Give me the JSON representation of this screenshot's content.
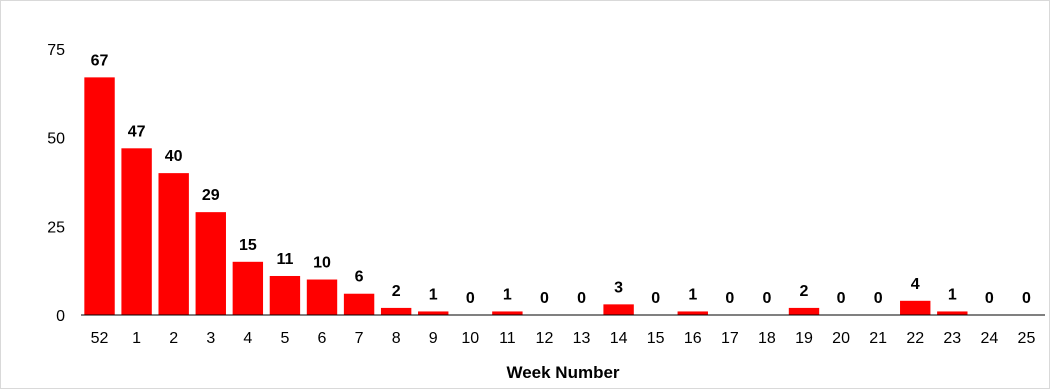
{
  "chart_data": {
    "type": "bar",
    "categories": [
      "52",
      "1",
      "2",
      "3",
      "4",
      "5",
      "6",
      "7",
      "8",
      "9",
      "10",
      "11",
      "12",
      "13",
      "14",
      "15",
      "16",
      "17",
      "18",
      "19",
      "20",
      "21",
      "22",
      "23",
      "24",
      "25"
    ],
    "values": [
      67,
      47,
      40,
      29,
      15,
      11,
      10,
      6,
      2,
      1,
      0,
      1,
      0,
      0,
      3,
      0,
      1,
      0,
      0,
      2,
      0,
      0,
      4,
      1,
      0,
      0
    ],
    "title": "",
    "xlabel": "Week Number",
    "ylabel": "",
    "ylim": [
      0,
      75
    ],
    "yticks": [
      0,
      25,
      50,
      75
    ],
    "grid": false,
    "legend": "none",
    "bar_color": "#ff0000",
    "data_labels": true
  }
}
